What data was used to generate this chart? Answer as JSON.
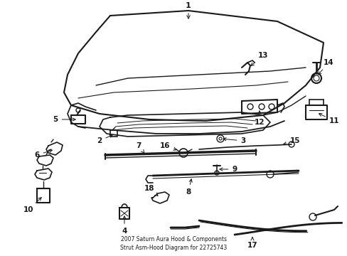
{
  "title": "2007 Saturn Aura Hood & Components\nStrut Asm-Hood Diagram for 22725743",
  "bg_color": "#ffffff",
  "line_color": "#1a1a1a",
  "fig_width": 4.89,
  "fig_height": 3.6,
  "dpi": 100
}
